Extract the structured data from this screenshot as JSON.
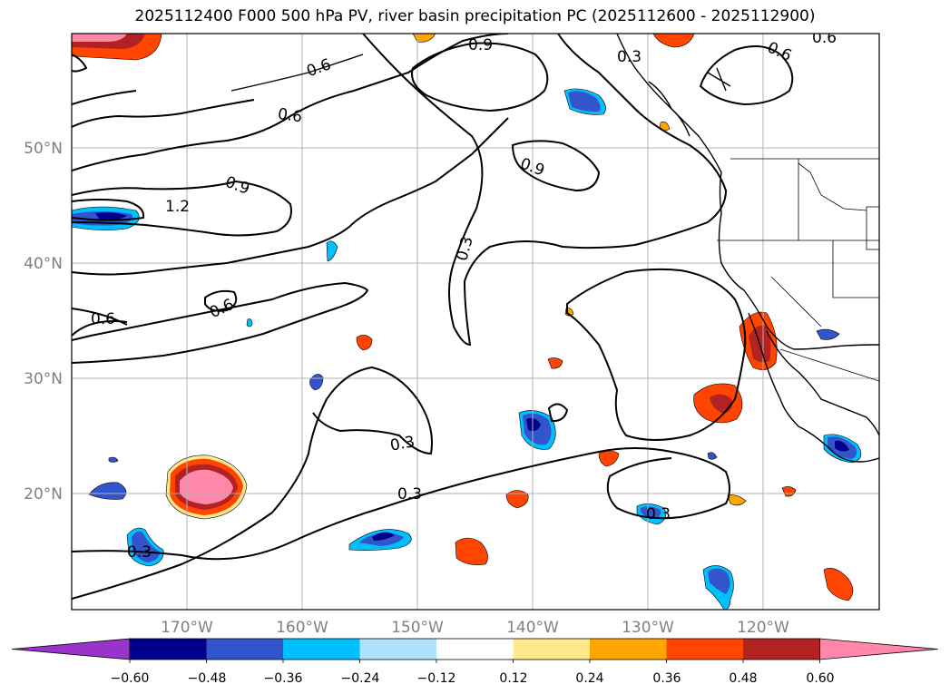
{
  "title": "2025112400 F000 500 hPa PV, river basin precipitation PC (2025112600 - 2025112900)",
  "map": {
    "lon_range": [
      -180,
      -110
    ],
    "lat_range": [
      10,
      60
    ],
    "lon_ticks": [
      {
        "value": -170,
        "label": "170°W"
      },
      {
        "value": -160,
        "label": "160°W"
      },
      {
        "value": -150,
        "label": "150°W"
      },
      {
        "value": -140,
        "label": "140°W"
      },
      {
        "value": -130,
        "label": "130°W"
      },
      {
        "value": -120,
        "label": "120°W"
      }
    ],
    "lat_ticks": [
      {
        "value": 50,
        "label": "50°N"
      },
      {
        "value": 40,
        "label": "40°N"
      },
      {
        "value": 30,
        "label": "30°N"
      },
      {
        "value": 20,
        "label": "20°N"
      }
    ],
    "grid": true,
    "pv_contour_levels": [
      0.3,
      0.6,
      0.9,
      1.2
    ],
    "contour_labels": [
      "0.6",
      "0.9",
      "0.3",
      "0.6",
      "0.6",
      "0.9",
      "1.2",
      "0.9",
      "0.3",
      "0.6",
      "0.6",
      "0.3",
      "0.3",
      "0.3",
      "0.3",
      "0.6"
    ]
  },
  "colorbar": {
    "ticks": [
      "−0.60",
      "−0.48",
      "−0.36",
      "−0.24",
      "−0.12",
      "0.12",
      "0.24",
      "0.36",
      "0.48",
      "0.60"
    ],
    "colors": [
      "#9933cc",
      "#00008b",
      "#3355cc",
      "#00bfff",
      "#aee2fa",
      "#ffffff",
      "#ffe98c",
      "#ffa500",
      "#ff4500",
      "#b22222",
      "#ff88aa"
    ],
    "extend": "both"
  }
}
